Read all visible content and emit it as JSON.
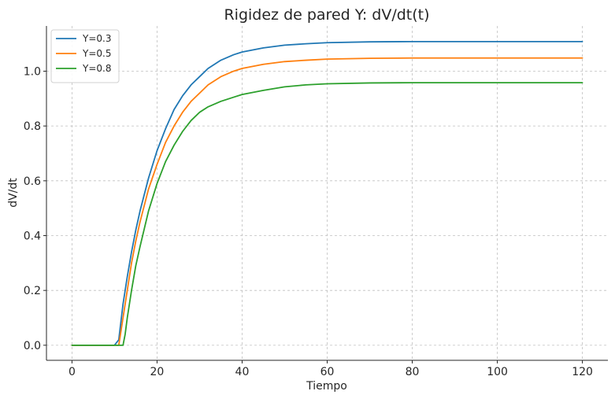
{
  "chart_data": {
    "type": "line",
    "title": "Rigidez de pared Y: dV/dt(t)",
    "xlabel": "Tiempo",
    "ylabel": "dV/dt",
    "xlim": [
      -6,
      126
    ],
    "ylim": [
      -0.055,
      1.165
    ],
    "x_ticks": [
      0,
      20,
      40,
      60,
      80,
      100,
      120
    ],
    "y_ticks": [
      0.0,
      0.2,
      0.4,
      0.6,
      0.8,
      1.0
    ],
    "grid": true,
    "legend_position": "top-left",
    "series": [
      {
        "name": "Y=0.3",
        "color": "#1f77b4",
        "x": [
          0,
          5,
          10,
          11,
          12,
          13,
          14,
          15,
          16,
          18,
          20,
          22,
          24,
          26,
          28,
          30,
          32,
          35,
          38,
          40,
          45,
          50,
          55,
          60,
          70,
          80,
          90,
          100,
          110,
          120
        ],
        "y": [
          0,
          0,
          0,
          0.02,
          0.15,
          0.25,
          0.34,
          0.42,
          0.49,
          0.61,
          0.71,
          0.79,
          0.86,
          0.91,
          0.95,
          0.98,
          1.01,
          1.04,
          1.06,
          1.07,
          1.085,
          1.095,
          1.1,
          1.104,
          1.107,
          1.108,
          1.108,
          1.108,
          1.108,
          1.108
        ]
      },
      {
        "name": "Y=0.5",
        "color": "#ff7f0e",
        "x": [
          0,
          5,
          10,
          11,
          12,
          13,
          14,
          15,
          16,
          18,
          20,
          22,
          24,
          26,
          28,
          30,
          32,
          35,
          38,
          40,
          45,
          50,
          55,
          60,
          70,
          80,
          90,
          100,
          110,
          120
        ],
        "y": [
          0,
          0,
          0,
          0,
          0.1,
          0.2,
          0.3,
          0.38,
          0.45,
          0.57,
          0.66,
          0.74,
          0.8,
          0.85,
          0.89,
          0.92,
          0.95,
          0.98,
          1.0,
          1.01,
          1.025,
          1.035,
          1.04,
          1.044,
          1.047,
          1.048,
          1.048,
          1.048,
          1.048,
          1.048
        ]
      },
      {
        "name": "Y=0.8",
        "color": "#2ca02c",
        "x": [
          0,
          5,
          10,
          11,
          12,
          12.5,
          13,
          14,
          15,
          16,
          18,
          20,
          22,
          24,
          26,
          28,
          30,
          32,
          35,
          38,
          40,
          45,
          50,
          55,
          60,
          70,
          80,
          90,
          100,
          110,
          120
        ],
        "y": [
          0,
          0,
          0,
          0,
          0,
          0.04,
          0.1,
          0.2,
          0.29,
          0.36,
          0.49,
          0.59,
          0.67,
          0.73,
          0.78,
          0.82,
          0.85,
          0.87,
          0.89,
          0.905,
          0.915,
          0.93,
          0.943,
          0.95,
          0.954,
          0.957,
          0.958,
          0.958,
          0.958,
          0.958,
          0.958
        ]
      }
    ]
  }
}
